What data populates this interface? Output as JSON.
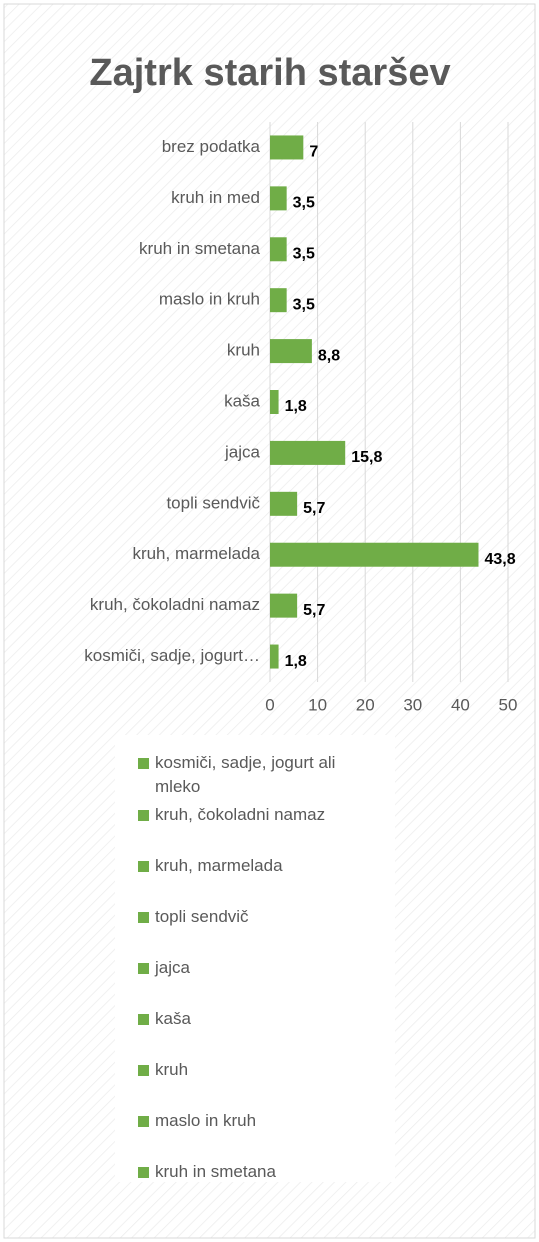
{
  "chart_data": {
    "type": "bar",
    "orientation": "horizontal",
    "title": "Zajtrk starih staršev",
    "categories": [
      "kosmiči, sadje, jogurt…",
      "kruh, čokoladni namaz",
      "kruh, marmelada",
      "topli sendvič",
      "jajca",
      "kaša",
      "kruh",
      "maslo in kruh",
      "kruh in smetana",
      "kruh in med",
      "brez podatka"
    ],
    "values": [
      1.8,
      5.7,
      43.8,
      5.7,
      15.8,
      1.8,
      8.8,
      3.5,
      3.5,
      3.5,
      7
    ],
    "value_labels": [
      "1,8",
      "5,7",
      "43,8",
      "5,7",
      "15,8",
      "1,8",
      "8,8",
      "3,5",
      "3,5",
      "3,5",
      "7"
    ],
    "color": "#70ad47",
    "xlim": [
      0,
      50
    ],
    "xticks": [
      0,
      10,
      20,
      30,
      40,
      50
    ],
    "grid": true,
    "legend": [
      "kosmiči, sadje, jogurt ali mleko",
      "kruh, čokoladni namaz",
      "kruh, marmelada",
      "topli sendvič",
      "jajca",
      "kaša",
      "kruh",
      "maslo in kruh",
      "kruh in smetana"
    ]
  }
}
